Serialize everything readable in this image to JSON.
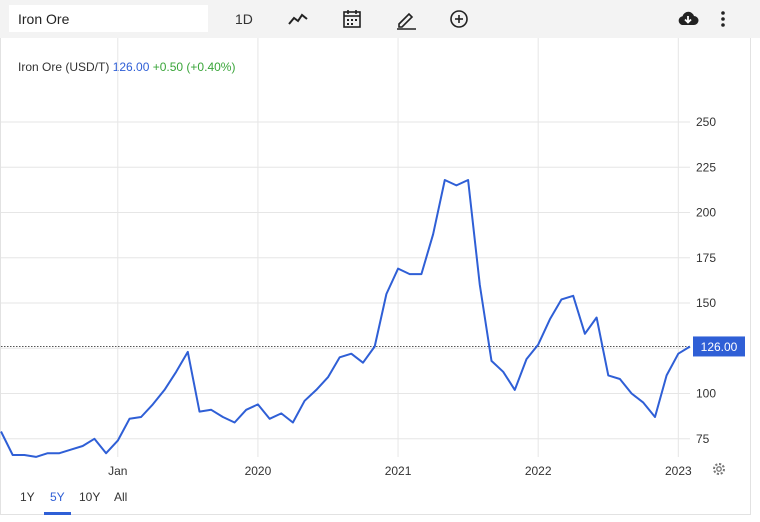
{
  "toolbar": {
    "search_value": "Iron Ore",
    "interval_label": "1D",
    "icons": [
      "line-chart-icon",
      "calendar-icon",
      "pencil-icon",
      "plus-circle-icon",
      "cloud-download-icon",
      "more-vertical-icon"
    ]
  },
  "quote": {
    "name": "Iron Ore (USD/T)",
    "price": "126.00",
    "change": "+0.50 (+0.40%)"
  },
  "range_buttons": [
    {
      "label": "1Y",
      "active": false
    },
    {
      "label": "5Y",
      "active": true
    },
    {
      "label": "10Y",
      "active": false
    },
    {
      "label": "All",
      "active": false
    }
  ],
  "colors": {
    "series": "#2f5fd6",
    "positive": "#3aa53a",
    "grid": "#e6e6e6",
    "price_tag_bg": "#2f5fd6"
  },
  "chart_data": {
    "type": "line",
    "title": "",
    "xlabel": "",
    "ylabel": "",
    "ylim": [
      50,
      255
    ],
    "xlim": [
      "2018-03",
      "2023-02"
    ],
    "y_ticks": [
      75,
      100,
      125,
      150,
      175,
      200,
      225,
      250
    ],
    "x_ticks": [
      {
        "label": "Jan",
        "at": "2019-01"
      },
      {
        "label": "2020",
        "at": "2020-01"
      },
      {
        "label": "2021",
        "at": "2021-01"
      },
      {
        "label": "2022",
        "at": "2022-01"
      },
      {
        "label": "2023",
        "at": "2023-01"
      }
    ],
    "last_price_label": "126.00",
    "last_price": 126.0,
    "grid": true,
    "series": [
      {
        "x": [
          "2018-03",
          "2018-04",
          "2018-05",
          "2018-06",
          "2018-07",
          "2018-08",
          "2018-09",
          "2018-10",
          "2018-11",
          "2018-12",
          "2019-01",
          "2019-02",
          "2019-03",
          "2019-04",
          "2019-05",
          "2019-06",
          "2019-07",
          "2019-08",
          "2019-09",
          "2019-10",
          "2019-11",
          "2019-12",
          "2020-01",
          "2020-02",
          "2020-03",
          "2020-04",
          "2020-05",
          "2020-06",
          "2020-07",
          "2020-08",
          "2020-09",
          "2020-10",
          "2020-11",
          "2020-12",
          "2021-01",
          "2021-02",
          "2021-03",
          "2021-04",
          "2021-05",
          "2021-06",
          "2021-07",
          "2021-08",
          "2021-09",
          "2021-10",
          "2021-11",
          "2021-12",
          "2022-01",
          "2022-02",
          "2022-03",
          "2022-04",
          "2022-05",
          "2022-06",
          "2022-07",
          "2022-08",
          "2022-09",
          "2022-10",
          "2022-11",
          "2022-12",
          "2023-01",
          "2023-02"
        ],
        "values": [
          79,
          66,
          66,
          65,
          67,
          67,
          69,
          71,
          75,
          67,
          74,
          86,
          87,
          94,
          102,
          112,
          123,
          90,
          91,
          87,
          84,
          91,
          94,
          86,
          89,
          84,
          96,
          102,
          109,
          120,
          122,
          117,
          126,
          155,
          169,
          166,
          166,
          188,
          218,
          215,
          218,
          160,
          118,
          112,
          102,
          119,
          127,
          141,
          152,
          154,
          133,
          142,
          110,
          108,
          100,
          95,
          87,
          110,
          122,
          126
        ]
      }
    ]
  }
}
